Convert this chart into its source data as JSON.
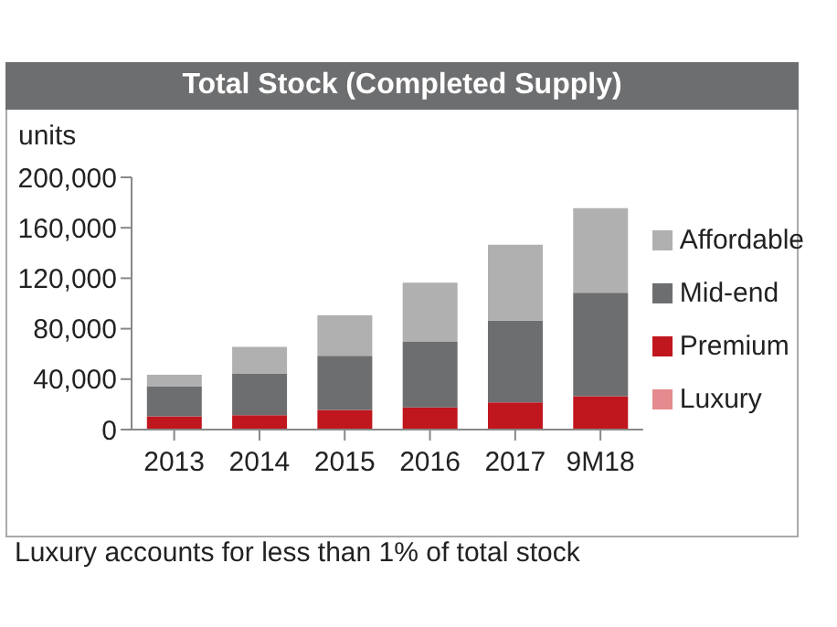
{
  "chart_data": {
    "type": "bar",
    "title": "Total Stock (Completed Supply)",
    "ylabel": "units",
    "stacked": true,
    "categories": [
      "2013",
      "2014",
      "2015",
      "2016",
      "2017",
      "9M18"
    ],
    "series": [
      {
        "name": "Luxury",
        "color": "#e58a8f",
        "values": [
          500,
          500,
          500,
          500,
          500,
          500
        ]
      },
      {
        "name": "Premium",
        "color": "#c0161e",
        "values": [
          10000,
          11000,
          15000,
          17000,
          21000,
          26000
        ]
      },
      {
        "name": "Mid-end",
        "color": "#6d6e70",
        "values": [
          24000,
          33000,
          43000,
          52000,
          65000,
          82000
        ]
      },
      {
        "name": "Affordable",
        "color": "#b0b0b0",
        "values": [
          9000,
          21000,
          32000,
          47000,
          60000,
          67000
        ]
      }
    ],
    "ylim": [
      0,
      200000
    ],
    "yticks": [
      0,
      {
        "value": 40000,
        "label": "40,000"
      },
      {
        "value": 80000,
        "label": "80,000"
      },
      {
        "value": 120000,
        "label": "120,000"
      },
      {
        "value": 160000,
        "label": "160,000"
      },
      {
        "value": 200000,
        "label": "200,000"
      }
    ],
    "grid": false,
    "legend": "right",
    "annotations": [
      "Luxury accounts for less than 1% of total stock"
    ]
  }
}
